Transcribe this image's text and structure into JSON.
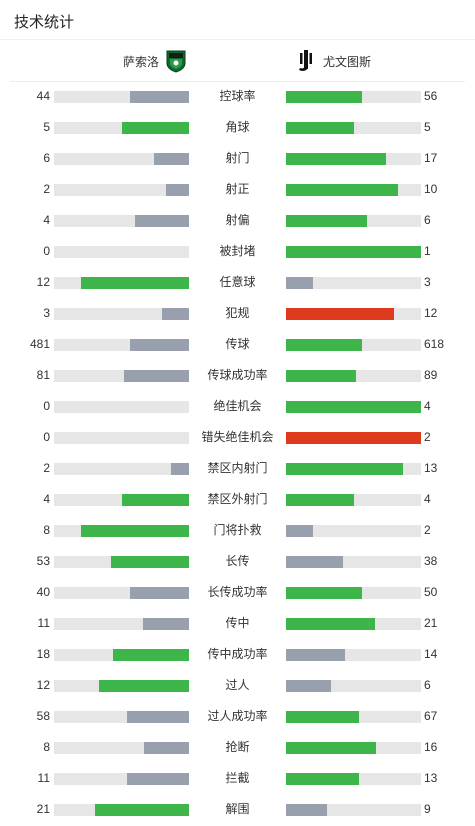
{
  "header": {
    "title": "技术统计"
  },
  "teams": {
    "home": "萨索洛",
    "away": "尤文图斯"
  },
  "colors": {
    "win": "#3db54a",
    "lose": "#98a0ad",
    "alert": "#e03a1e",
    "track": "#e6e6e6"
  },
  "stats": [
    {
      "label": "控球率",
      "home": "44",
      "away": "56",
      "hf": 0.44,
      "af": 0.56,
      "hc": "lose",
      "ac": "win"
    },
    {
      "label": "角球",
      "home": "5",
      "away": "5",
      "hf": 0.5,
      "af": 0.5,
      "hc": "win",
      "ac": "win"
    },
    {
      "label": "射门",
      "home": "6",
      "away": "17",
      "hf": 0.26,
      "af": 0.74,
      "hc": "lose",
      "ac": "win"
    },
    {
      "label": "射正",
      "home": "2",
      "away": "10",
      "hf": 0.17,
      "af": 0.83,
      "hc": "lose",
      "ac": "win"
    },
    {
      "label": "射偏",
      "home": "4",
      "away": "6",
      "hf": 0.4,
      "af": 0.6,
      "hc": "lose",
      "ac": "win"
    },
    {
      "label": "被封堵",
      "home": "0",
      "away": "1",
      "hf": 0,
      "af": 1,
      "hc": "lose",
      "ac": "win"
    },
    {
      "label": "任意球",
      "home": "12",
      "away": "3",
      "hf": 0.8,
      "af": 0.2,
      "hc": "win",
      "ac": "lose"
    },
    {
      "label": "犯规",
      "home": "3",
      "away": "12",
      "hf": 0.2,
      "af": 0.8,
      "hc": "lose",
      "ac": "alert"
    },
    {
      "label": "传球",
      "home": "481",
      "away": "618",
      "hf": 0.44,
      "af": 0.56,
      "hc": "lose",
      "ac": "win"
    },
    {
      "label": "传球成功率",
      "home": "81",
      "away": "89",
      "hf": 0.48,
      "af": 0.52,
      "hc": "lose",
      "ac": "win"
    },
    {
      "label": "绝佳机会",
      "home": "0",
      "away": "4",
      "hf": 0,
      "af": 1,
      "hc": "lose",
      "ac": "win"
    },
    {
      "label": "错失绝佳机会",
      "home": "0",
      "away": "2",
      "hf": 0,
      "af": 1,
      "hc": "lose",
      "ac": "alert"
    },
    {
      "label": "禁区内射门",
      "home": "2",
      "away": "13",
      "hf": 0.13,
      "af": 0.87,
      "hc": "lose",
      "ac": "win"
    },
    {
      "label": "禁区外射门",
      "home": "4",
      "away": "4",
      "hf": 0.5,
      "af": 0.5,
      "hc": "win",
      "ac": "win"
    },
    {
      "label": "门将扑救",
      "home": "8",
      "away": "2",
      "hf": 0.8,
      "af": 0.2,
      "hc": "win",
      "ac": "lose"
    },
    {
      "label": "长传",
      "home": "53",
      "away": "38",
      "hf": 0.58,
      "af": 0.42,
      "hc": "win",
      "ac": "lose"
    },
    {
      "label": "长传成功率",
      "home": "40",
      "away": "50",
      "hf": 0.44,
      "af": 0.56,
      "hc": "lose",
      "ac": "win"
    },
    {
      "label": "传中",
      "home": "11",
      "away": "21",
      "hf": 0.34,
      "af": 0.66,
      "hc": "lose",
      "ac": "win"
    },
    {
      "label": "传中成功率",
      "home": "18",
      "away": "14",
      "hf": 0.56,
      "af": 0.44,
      "hc": "win",
      "ac": "lose"
    },
    {
      "label": "过人",
      "home": "12",
      "away": "6",
      "hf": 0.67,
      "af": 0.33,
      "hc": "win",
      "ac": "lose"
    },
    {
      "label": "过人成功率",
      "home": "58",
      "away": "67",
      "hf": 0.46,
      "af": 0.54,
      "hc": "lose",
      "ac": "win"
    },
    {
      "label": "抢断",
      "home": "8",
      "away": "16",
      "hf": 0.33,
      "af": 0.67,
      "hc": "lose",
      "ac": "win"
    },
    {
      "label": "拦截",
      "home": "11",
      "away": "13",
      "hf": 0.46,
      "af": 0.54,
      "hc": "lose",
      "ac": "win"
    },
    {
      "label": "解围",
      "home": "21",
      "away": "9",
      "hf": 0.7,
      "af": 0.3,
      "hc": "win",
      "ac": "lose"
    }
  ]
}
